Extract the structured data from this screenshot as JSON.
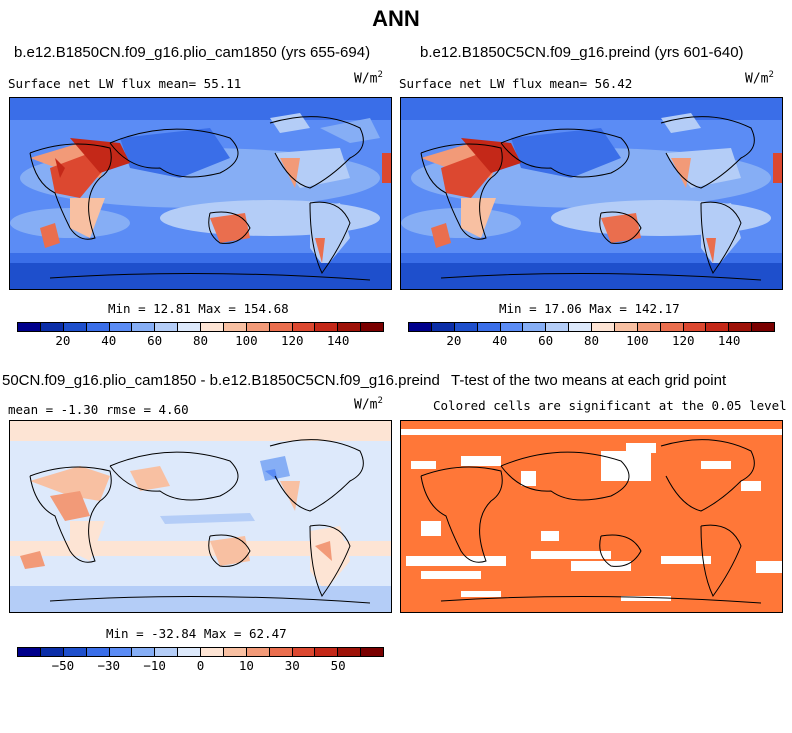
{
  "title": "ANN",
  "units_base": "W/m",
  "units_exp": "2",
  "panels": {
    "top_left": {
      "title": "b.e12.B1850CN.f09_g16.plio_cam1850 (yrs 655-694)",
      "subtitle": "Surface net LW flux mean=  55.11",
      "minmax": "Min =  12.81 Max = 154.68"
    },
    "top_right": {
      "title": "b.e12.B1850C5CN.f09_g16.preind (yrs 601-640)",
      "subtitle": "Surface net LW flux mean=  56.42",
      "minmax": "Min =  17.06 Max = 142.17"
    },
    "bottom_left": {
      "title": "50CN.f09_g16.plio_cam1850 - b.e12.B1850C5CN.f09_g16.preind",
      "stats": "mean =  -1.30     rmse =   4.60",
      "minmax": "Min = -32.84 Max =  62.47"
    },
    "bottom_right": {
      "title": "T-test of the two means at each grid point",
      "subtitle": "Colored cells are significant at the 0.05 level"
    }
  },
  "colorbar_abs": {
    "ticks": [
      "20",
      "40",
      "60",
      "80",
      "100",
      "120",
      "140"
    ],
    "colors": [
      "#00008c",
      "#0b2ea8",
      "#1e4fcc",
      "#3a6ee8",
      "#5b8cf5",
      "#86aef5",
      "#b4cdf7",
      "#dde9fb",
      "#fde4d4",
      "#f8c0a2",
      "#f29a78",
      "#ea6e4e",
      "#dc4830",
      "#c42818",
      "#9e1208",
      "#7a0000"
    ]
  },
  "colorbar_diff": {
    "ticks": [
      "−50",
      "−30",
      "−10",
      "0",
      "10",
      "30",
      "50"
    ],
    "colors": [
      "#00008c",
      "#0b2ea8",
      "#1e4fcc",
      "#3a6ee8",
      "#5b8cf5",
      "#86aef5",
      "#b4cdf7",
      "#dde9fb",
      "#fde4d4",
      "#f8c0a2",
      "#f29a78",
      "#ea6e4e",
      "#dc4830",
      "#c42818",
      "#9e1208",
      "#7a0000"
    ]
  },
  "ttest_color": "#ff7738"
}
